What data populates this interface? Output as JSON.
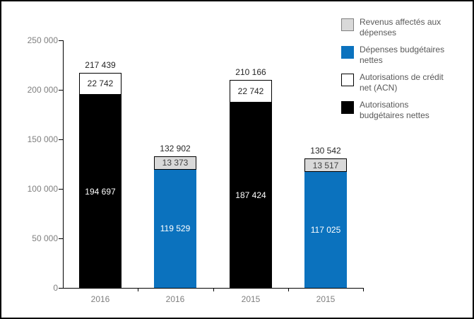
{
  "chart": {
    "background": "#ffffff",
    "frame_border_color": "#000000",
    "axis_color": "#000000",
    "tick_label_color": "#7f7f7f",
    "total_label_color": "#262626",
    "legend_text_color": "#595959"
  },
  "chart_data": {
    "type": "bar",
    "stacked": true,
    "title": "",
    "xlabel": "",
    "ylabel": "",
    "grid": false,
    "legend_position": "top-right",
    "ylim": [
      0,
      250000
    ],
    "y_ticks": [
      {
        "value": 0,
        "label": "0"
      },
      {
        "value": 50000,
        "label": "50 000"
      },
      {
        "value": 100000,
        "label": "100 000"
      },
      {
        "value": 150000,
        "label": "150 000"
      },
      {
        "value": 200000,
        "label": "200 000"
      },
      {
        "value": 250000,
        "label": "250 000"
      }
    ],
    "categories": [
      "2016",
      "2016",
      "2015",
      "2015"
    ],
    "legend": [
      {
        "label": "Revenus affectés aux dépenses",
        "lines": [
          "Revenus affectés aux",
          "dépenses"
        ],
        "color": "#d9d9d9",
        "border": "#808080"
      },
      {
        "label": "Dépenses budgétaires nettes",
        "lines": [
          "Dépenses budgétaires",
          "nettes"
        ],
        "color": "#0b72be",
        "border": "#0b72be"
      },
      {
        "label": "Autorisations de crédit net (ACN)",
        "lines": [
          "Autorisations de crédit",
          "net (ACN)"
        ],
        "color": "#ffffff",
        "border": "#000000"
      },
      {
        "label": "Autorisations budgétaires nettes",
        "lines": [
          "Autorisations",
          "budgétaires nettes"
        ],
        "color": "#000000",
        "border": "#000000"
      }
    ],
    "bars": [
      {
        "category": "2016",
        "total": 217439,
        "total_label": "217 439",
        "segments": [
          {
            "series": "Autorisations budgétaires nettes",
            "value": 194697,
            "label": "194 697",
            "color": "#000000",
            "border": "#000000",
            "text_color": "#ffffff"
          },
          {
            "series": "Autorisations de crédit net (ACN)",
            "value": 22742,
            "label": "22 742",
            "color": "#ffffff",
            "border": "#000000",
            "text_color": "#262626"
          }
        ]
      },
      {
        "category": "2016",
        "total": 132902,
        "total_label": "132 902",
        "segments": [
          {
            "series": "Dépenses budgétaires nettes",
            "value": 119529,
            "label": "119 529",
            "color": "#0b72be",
            "border": "#0b72be",
            "text_color": "#ffffff"
          },
          {
            "series": "Revenus affectés aux dépenses",
            "value": 13373,
            "label": "13 373",
            "color": "#d9d9d9",
            "border": "#000000",
            "text_color": "#404040"
          }
        ]
      },
      {
        "category": "2015",
        "total": 210166,
        "total_label": "210 166",
        "segments": [
          {
            "series": "Autorisations budgétaires nettes",
            "value": 187424,
            "label": "187 424",
            "color": "#000000",
            "border": "#000000",
            "text_color": "#ffffff"
          },
          {
            "series": "Autorisations de crédit net (ACN)",
            "value": 22742,
            "label": "22 742",
            "color": "#ffffff",
            "border": "#000000",
            "text_color": "#262626"
          }
        ]
      },
      {
        "category": "2015",
        "total": 130542,
        "total_label": "130 542",
        "segments": [
          {
            "series": "Dépenses budgétaires nettes",
            "value": 117025,
            "label": "117 025",
            "color": "#0b72be",
            "border": "#0b72be",
            "text_color": "#ffffff"
          },
          {
            "series": "Revenus affectés aux dépenses",
            "value": 13517,
            "label": "13 517",
            "color": "#d9d9d9",
            "border": "#000000",
            "text_color": "#404040"
          }
        ]
      }
    ]
  }
}
